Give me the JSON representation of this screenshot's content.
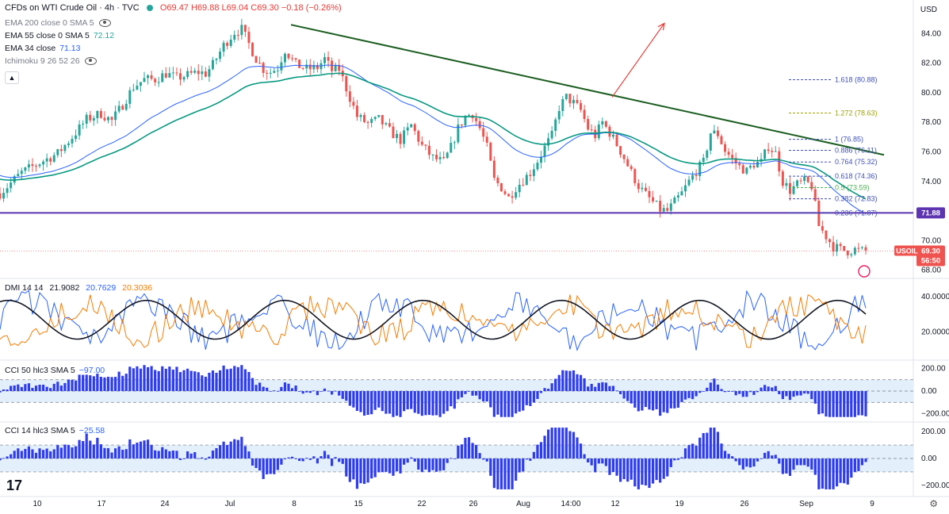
{
  "header": {
    "symbol_title": "CFDs on WTI Crude Oil · 4h · TVC",
    "ohlc_o": "O69.47",
    "ohlc_h": "H69.88",
    "ohlc_l": "L69.04",
    "ohlc_c": "C69.30",
    "change": "−0.18 (−0.26%)",
    "currency": "USD",
    "status_color": "#26a69a"
  },
  "indicators": {
    "ema200": {
      "label": "EMA 200 close 0 SMA 5",
      "value": ""
    },
    "ema55": {
      "label": "EMA 55 close 0 SMA 5",
      "value": "72.12"
    },
    "ema34": {
      "label": "EMA 34 close",
      "value": "71.13"
    },
    "ichimoku": {
      "label": "Ichimoku 9 26 52 26",
      "value": ""
    }
  },
  "panes": {
    "dmi": {
      "label": "DMI 14 14",
      "v1": "21.9082",
      "v2": "20.7629",
      "v3": "20.3036"
    },
    "cci50": {
      "label": "CCI 50 hlc3 SMA 5",
      "value": "−97.00"
    },
    "cci14": {
      "label": "CCI 14 hlc3 SMA 5",
      "value": "−25.58"
    }
  },
  "price_tags": {
    "support": "71.88",
    "symbol": "USOIL",
    "last": "69.30",
    "countdown": "56:50"
  },
  "fib_levels": [
    {
      "label": "1.618 (80.88)",
      "price": 80.88,
      "color": "#3f51b5"
    },
    {
      "label": "1.272 (78.63)",
      "price": 78.63,
      "color": "#9aa300"
    },
    {
      "label": "1 (76.85)",
      "price": 76.85,
      "color": "#3f51b5"
    },
    {
      "label": "0.886 (76.11)",
      "price": 76.11,
      "color": "#3f51b5"
    },
    {
      "label": "0.764 (75.32)",
      "price": 75.32,
      "color": "#3f51b5"
    },
    {
      "label": "0.618 (74.36)",
      "price": 74.36,
      "color": "#3f51b5"
    },
    {
      "label": "0.5 (73.59)",
      "price": 73.59,
      "color": "#4caf50"
    },
    {
      "label": "0.382 (72.83)",
      "price": 72.83,
      "color": "#3f51b5"
    },
    {
      "label": "0.236 (71.87)",
      "price": 71.87,
      "color": "#3f51b5"
    }
  ],
  "chart_data": {
    "type": "candlestick",
    "title": "CFDs on WTI Crude Oil · 4h · TVC",
    "ylim": [
      67.5,
      85.2
    ],
    "y_ticks": [
      "84.00",
      "82.00",
      "80.00",
      "78.00",
      "76.00",
      "74.00",
      "72.00",
      "70.00",
      "68.00"
    ],
    "x_ticks": [
      "10",
      "17",
      "24",
      "Jul",
      "8",
      "15",
      "22",
      "26",
      "Aug",
      "14:00",
      "12",
      "19",
      "26",
      "Sep",
      "9"
    ],
    "close_path": [
      [
        0,
        73.2
      ],
      [
        6,
        74.6
      ],
      [
        12,
        75.4
      ],
      [
        16,
        75.9
      ],
      [
        20,
        77.0
      ],
      [
        24,
        78.2
      ],
      [
        28,
        78.6
      ],
      [
        31,
        78.1
      ],
      [
        34,
        79.2
      ],
      [
        37,
        80.4
      ],
      [
        40,
        80.9
      ],
      [
        43,
        80.9
      ],
      [
        46,
        81.3
      ],
      [
        49,
        81.0
      ],
      [
        52,
        81.2
      ],
      [
        55,
        81.4
      ],
      [
        57,
        81.3
      ],
      [
        59,
        81.9
      ],
      [
        62,
        83.2
      ],
      [
        65,
        84.1
      ],
      [
        67,
        84.3
      ],
      [
        69,
        83.3
      ],
      [
        71,
        82.3
      ],
      [
        73,
        81.6
      ],
      [
        75,
        81.4
      ],
      [
        77,
        81.7
      ],
      [
        79,
        82.9
      ],
      [
        82,
        81.9
      ],
      [
        85,
        81.6
      ],
      [
        88,
        81.7
      ],
      [
        90,
        82.3
      ],
      [
        92,
        81.5
      ],
      [
        94,
        81.6
      ],
      [
        96,
        80.3
      ],
      [
        99,
        78.4
      ],
      [
        102,
        77.9
      ],
      [
        105,
        78.2
      ],
      [
        108,
        77.4
      ],
      [
        111,
        76.8
      ],
      [
        114,
        77.8
      ],
      [
        117,
        76.4
      ],
      [
        120,
        75.6
      ],
      [
        123,
        75.3
      ],
      [
        125,
        76.3
      ],
      [
        127,
        77.6
      ],
      [
        129,
        78.4
      ],
      [
        131,
        78.6
      ],
      [
        133,
        77.6
      ],
      [
        135,
        76.3
      ],
      [
        137,
        74.1
      ],
      [
        139,
        73.6
      ],
      [
        141,
        72.9
      ],
      [
        143,
        73.6
      ],
      [
        145,
        74.1
      ],
      [
        147,
        74.6
      ],
      [
        149,
        75.4
      ],
      [
        151,
        76.3
      ],
      [
        153,
        77.1
      ],
      [
        155,
        79.0
      ],
      [
        157,
        79.7
      ],
      [
        159,
        79.3
      ],
      [
        161,
        78.8
      ],
      [
        163,
        77.6
      ],
      [
        165,
        77.1
      ],
      [
        167,
        78.0
      ],
      [
        169,
        77.3
      ],
      [
        171,
        76.5
      ],
      [
        173,
        75.6
      ],
      [
        175,
        74.6
      ],
      [
        177,
        73.7
      ],
      [
        179,
        73.1
      ],
      [
        181,
        72.6
      ],
      [
        183,
        72.1
      ],
      [
        185,
        72.0
      ],
      [
        187,
        72.6
      ],
      [
        189,
        73.2
      ],
      [
        191,
        74.0
      ],
      [
        193,
        74.7
      ],
      [
        195,
        75.3
      ],
      [
        197,
        77.3
      ],
      [
        199,
        77.2
      ],
      [
        201,
        76.1
      ],
      [
        203,
        75.5
      ],
      [
        205,
        75.0
      ],
      [
        207,
        74.7
      ],
      [
        209,
        75.2
      ],
      [
        211,
        75.3
      ],
      [
        213,
        76.4
      ],
      [
        215,
        75.9
      ],
      [
        217,
        74.0
      ],
      [
        219,
        73.4
      ],
      [
        221,
        73.8
      ],
      [
        223,
        74.0
      ],
      [
        225,
        73.7
      ],
      [
        227,
        71.0
      ],
      [
        229,
        70.3
      ],
      [
        231,
        69.6
      ],
      [
        233,
        69.4
      ],
      [
        235,
        69.3
      ],
      [
        237,
        69.4
      ],
      [
        239,
        69.3
      ]
    ],
    "x_index_max": 240,
    "trendline": {
      "from": [
        367,
        84.6
      ],
      "to": [
        1115,
        75.8
      ],
      "color": "#1b5e20"
    },
    "horizontal_support": {
      "price": 71.88,
      "color": "#5e35b1"
    },
    "arrow": {
      "from_x": 772,
      "from_price": 79.7,
      "to_x": 838,
      "to_price": 84.7,
      "color": "#e53935"
    },
    "dmi_ylim": [
      5,
      50
    ],
    "dmi_ticks": [
      "40.0000",
      "20.0000"
    ],
    "cci_ylim": [
      -260,
      260
    ],
    "cci_ticks": [
      "200.00",
      "0.00",
      "−200.00"
    ]
  }
}
